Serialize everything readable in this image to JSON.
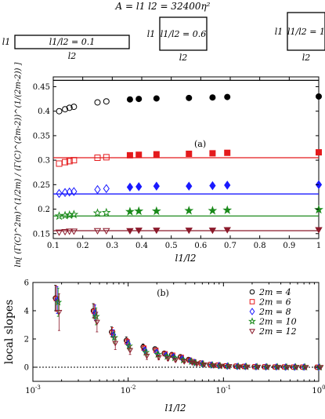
{
  "header": {
    "formula": "A = l1 l2 = 32400η²",
    "boxes": [
      {
        "ratio_label": "l1/l2 = 0.1",
        "side_label": "l1",
        "bottom_label": "l2"
      },
      {
        "ratio_label": "l1/l2 = 0.6",
        "side_label": "l1",
        "bottom_label": "l2"
      },
      {
        "ratio_label": "l1/l2 = 1",
        "side_label": "l1",
        "bottom_label": "l2"
      }
    ]
  },
  "chart_data": [
    {
      "type": "scatter",
      "panel_label": "(a)",
      "xlabel": "l1/l2",
      "ylabel": "ln[ (Γ(C)^2m)^(1/2m) / (Γ(C)^(2m-2))^(1/(2m-2)) ]",
      "xlim": [
        0.1,
        1.0
      ],
      "ylim": [
        0.14,
        0.47
      ],
      "xticks": [
        0.1,
        0.2,
        0.3,
        0.4,
        0.5,
        0.6,
        0.7,
        0.8,
        0.9,
        1
      ],
      "yticks": [
        0.15,
        0.2,
        0.25,
        0.3,
        0.35,
        0.4,
        0.45
      ],
      "ytick_labels": [
        "0.15",
        "0.2",
        "0.25",
        "0.3",
        "0.35",
        "0.4",
        "0.45"
      ],
      "xtick_labels": [
        "0.1",
        "0.2",
        "0.3",
        "0.4",
        "0.5",
        "0.6",
        "0.7",
        "0.8",
        "0.9",
        "1"
      ],
      "open_x": [
        0.12,
        0.14,
        0.155,
        0.17,
        0.25,
        0.28
      ],
      "filled_x": [
        0.36,
        0.39,
        0.45,
        0.56,
        0.64,
        0.69,
        1.0
      ],
      "series": [
        {
          "name": "2m=4",
          "color": "#000000",
          "marker": "circle",
          "hline": 0.463,
          "open_y": [
            0.4,
            0.404,
            0.407,
            0.409,
            0.418,
            0.42
          ],
          "filled_y": [
            0.424,
            0.425,
            0.426,
            0.427,
            0.428,
            0.429,
            0.43
          ]
        },
        {
          "name": "2m=6",
          "color": "#e41a1c",
          "marker": "square",
          "hline": 0.305,
          "open_y": [
            0.293,
            0.296,
            0.298,
            0.3,
            0.305,
            0.306
          ],
          "filled_y": [
            0.31,
            0.311,
            0.312,
            0.313,
            0.314,
            0.315,
            0.316
          ]
        },
        {
          "name": "2m=8",
          "color": "#1a1aff",
          "marker": "diamond",
          "hline": 0.231,
          "open_y": [
            0.232,
            0.234,
            0.235,
            0.236,
            0.24,
            0.242
          ],
          "filled_y": [
            0.245,
            0.246,
            0.247,
            0.247,
            0.248,
            0.249,
            0.25
          ]
        },
        {
          "name": "2m=10",
          "color": "#1b8a1b",
          "marker": "star",
          "hline": 0.186,
          "open_y": [
            0.186,
            0.187,
            0.188,
            0.189,
            0.192,
            0.193
          ],
          "filled_y": [
            0.195,
            0.196,
            0.196,
            0.197,
            0.197,
            0.198,
            0.199
          ]
        },
        {
          "name": "2m=12",
          "color": "#8b1a2b",
          "marker": "triangle-down",
          "hline": 0.156,
          "open_y": [
            0.153,
            0.154,
            0.155,
            0.155,
            0.156,
            0.156
          ],
          "filled_y": [
            0.156,
            0.157,
            0.157,
            0.157,
            0.157,
            0.158,
            0.158
          ]
        }
      ]
    },
    {
      "type": "scatter",
      "panel_label": "(b)",
      "xlabel": "l1/l2",
      "ylabel": "local slopes",
      "xscale": "log",
      "xlim": [
        0.001,
        1
      ],
      "ylim": [
        -1,
        6
      ],
      "xticks": [
        0.001,
        0.01,
        0.1,
        1
      ],
      "xtick_labels": [
        "10^-3",
        "10^-2",
        "10^-1",
        "10^0"
      ],
      "yticks": [
        0,
        2,
        4,
        6
      ],
      "ytick_labels": [
        "0",
        "2",
        "4",
        "6"
      ],
      "zero_line": 0,
      "x": [
        0.0018,
        0.0045,
        0.007,
        0.01,
        0.015,
        0.02,
        0.025,
        0.03,
        0.037,
        0.045,
        0.05,
        0.06,
        0.075,
        0.09,
        0.11,
        0.14,
        0.17,
        0.22,
        0.28,
        0.36,
        0.45,
        0.56,
        0.7,
        1.0
      ],
      "series": [
        {
          "name": "2m = 4",
          "color": "#000000",
          "marker": "circle",
          "values": [
            4.9,
            4.0,
            2.5,
            1.9,
            1.45,
            1.3,
            1.0,
            0.9,
            0.75,
            0.55,
            0.4,
            0.3,
            0.2,
            0.15,
            0.1,
            0.08,
            0.06,
            0.04,
            0.03,
            0.02,
            0.02,
            0.01,
            0.01,
            0.0
          ],
          "errors": [
            0.9,
            0.5,
            0.35,
            0.25,
            0.2,
            0.15,
            0.12,
            0.1,
            0.08,
            0.06,
            0.05,
            0.04,
            0.03,
            0.02,
            0.02,
            0.02,
            0.01,
            0.01,
            0.01,
            0.01,
            0.01,
            0.01,
            0.01,
            0.01
          ]
        },
        {
          "name": "2m = 6",
          "color": "#e41a1c",
          "marker": "square",
          "values": [
            4.85,
            3.95,
            2.45,
            1.8,
            1.35,
            1.2,
            0.95,
            0.85,
            0.7,
            0.5,
            0.38,
            0.28,
            0.18,
            0.14,
            0.09,
            0.07,
            0.05,
            0.04,
            0.03,
            0.02,
            0.02,
            0.01,
            0.01,
            0.0
          ],
          "errors": [
            0.9,
            0.5,
            0.35,
            0.25,
            0.2,
            0.15,
            0.12,
            0.1,
            0.08,
            0.06,
            0.05,
            0.04,
            0.03,
            0.02,
            0.02,
            0.02,
            0.01,
            0.01,
            0.01,
            0.01,
            0.01,
            0.01,
            0.01,
            0.01
          ]
        },
        {
          "name": "2m = 8",
          "color": "#1a1aff",
          "marker": "diamond",
          "values": [
            4.75,
            3.85,
            2.3,
            1.65,
            1.2,
            1.05,
            0.85,
            0.75,
            0.6,
            0.45,
            0.34,
            0.25,
            0.16,
            0.12,
            0.08,
            0.06,
            0.05,
            0.03,
            0.02,
            0.02,
            0.01,
            0.01,
            0.01,
            0.0
          ],
          "errors": [
            0.95,
            0.55,
            0.35,
            0.25,
            0.2,
            0.15,
            0.12,
            0.1,
            0.08,
            0.06,
            0.05,
            0.04,
            0.03,
            0.02,
            0.02,
            0.02,
            0.01,
            0.01,
            0.01,
            0.01,
            0.01,
            0.01,
            0.01,
            0.01
          ]
        },
        {
          "name": "2m = 10",
          "color": "#1b8a1b",
          "marker": "star",
          "values": [
            4.6,
            3.6,
            2.1,
            1.5,
            1.05,
            0.9,
            0.75,
            0.65,
            0.5,
            0.4,
            0.3,
            0.22,
            0.14,
            0.1,
            0.07,
            0.05,
            0.04,
            0.03,
            0.02,
            0.02,
            0.01,
            0.01,
            0.01,
            0.0
          ],
          "errors": [
            1.0,
            0.6,
            0.4,
            0.28,
            0.22,
            0.16,
            0.13,
            0.1,
            0.08,
            0.06,
            0.05,
            0.04,
            0.03,
            0.02,
            0.02,
            0.02,
            0.01,
            0.01,
            0.01,
            0.01,
            0.01,
            0.01,
            0.01,
            0.01
          ]
        },
        {
          "name": "2m = 12",
          "color": "#8b1a2b",
          "marker": "triangle-down",
          "values": [
            3.9,
            3.2,
            1.7,
            1.2,
            0.8,
            0.7,
            0.6,
            0.5,
            0.4,
            0.32,
            0.25,
            0.18,
            0.12,
            0.09,
            0.06,
            0.04,
            0.03,
            0.02,
            0.02,
            0.01,
            0.01,
            0.01,
            0.0,
            0.0
          ],
          "errors": [
            1.3,
            0.7,
            0.45,
            0.3,
            0.25,
            0.18,
            0.14,
            0.11,
            0.09,
            0.07,
            0.06,
            0.05,
            0.03,
            0.03,
            0.02,
            0.02,
            0.02,
            0.01,
            0.01,
            0.01,
            0.01,
            0.01,
            0.01,
            0.01
          ]
        }
      ],
      "legend": {
        "position": "top-right"
      }
    }
  ]
}
